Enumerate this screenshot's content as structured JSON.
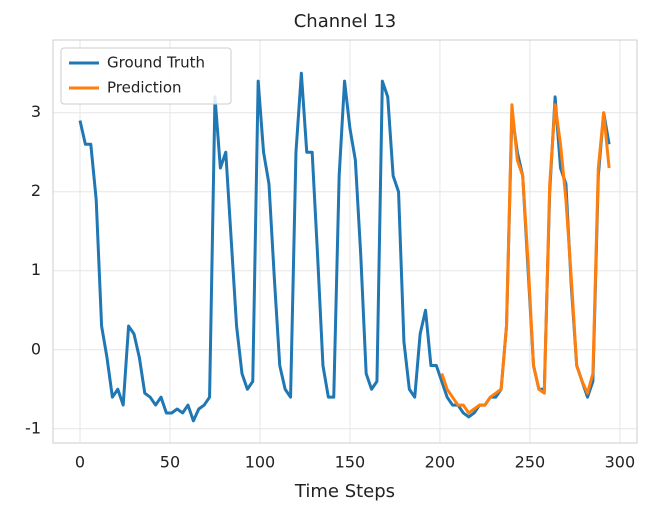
{
  "chart_data": {
    "type": "line",
    "title": "Channel 13",
    "xlabel": "Time Steps",
    "x": [
      0,
      3,
      6,
      9,
      12,
      15,
      18,
      21,
      24,
      27,
      30,
      33,
      36,
      39,
      42,
      45,
      48,
      51,
      54,
      57,
      60,
      63,
      66,
      69,
      72,
      75,
      78,
      81,
      84,
      87,
      90,
      93,
      96,
      99,
      102,
      105,
      108,
      111,
      114,
      117,
      120,
      123,
      126,
      129,
      132,
      135,
      138,
      141,
      144,
      147,
      150,
      153,
      156,
      159,
      162,
      165,
      168,
      171,
      174,
      177,
      180,
      183,
      186,
      189,
      192,
      195,
      198,
      201,
      204,
      207,
      210,
      213,
      216,
      219,
      222,
      225,
      228,
      231,
      234,
      237,
      240,
      243,
      246,
      249,
      252,
      255,
      258,
      261,
      264,
      267,
      270,
      273,
      276,
      279,
      282,
      285,
      288,
      291,
      294
    ],
    "series": [
      {
        "name": "Ground Truth",
        "color": "#1f77b4",
        "values": [
          2.9,
          2.6,
          2.6,
          1.9,
          0.3,
          -0.1,
          -0.6,
          -0.5,
          -0.7,
          0.3,
          0.2,
          -0.1,
          -0.55,
          -0.6,
          -0.7,
          -0.6,
          -0.8,
          -0.8,
          -0.75,
          -0.8,
          -0.7,
          -0.9,
          -0.75,
          -0.7,
          -0.6,
          3.2,
          2.3,
          2.5,
          1.4,
          0.3,
          -0.3,
          -0.5,
          -0.4,
          3.4,
          2.5,
          2.1,
          0.9,
          -0.2,
          -0.5,
          -0.6,
          2.5,
          3.5,
          2.5,
          2.5,
          1.2,
          -0.2,
          -0.6,
          -0.6,
          2.2,
          3.4,
          2.8,
          2.4,
          1.2,
          -0.3,
          -0.5,
          -0.4,
          3.4,
          3.2,
          2.2,
          2.0,
          0.1,
          -0.5,
          -0.6,
          0.2,
          0.5,
          -0.2,
          -0.2,
          -0.4,
          -0.6,
          -0.7,
          -0.7,
          -0.8,
          -0.85,
          -0.8,
          -0.7,
          -0.7,
          -0.6,
          -0.6,
          -0.5,
          0.3,
          3.0,
          2.5,
          2.2,
          1.0,
          -0.2,
          -0.5,
          -0.5,
          2.0,
          3.2,
          2.3,
          2.1,
          0.8,
          -0.2,
          -0.4,
          -0.6,
          -0.4,
          2.2,
          3.0,
          2.6
        ]
      },
      {
        "name": "Prediction",
        "color": "#ff7f0e",
        "values": [
          null,
          null,
          null,
          null,
          null,
          null,
          null,
          null,
          null,
          null,
          null,
          null,
          null,
          null,
          null,
          null,
          null,
          null,
          null,
          null,
          null,
          null,
          null,
          null,
          null,
          null,
          null,
          null,
          null,
          null,
          null,
          null,
          null,
          null,
          null,
          null,
          null,
          null,
          null,
          null,
          null,
          null,
          null,
          null,
          null,
          null,
          null,
          null,
          null,
          null,
          null,
          null,
          null,
          null,
          null,
          null,
          null,
          null,
          null,
          null,
          null,
          null,
          null,
          null,
          null,
          null,
          null,
          -0.3,
          -0.5,
          -0.6,
          -0.7,
          -0.7,
          -0.8,
          -0.75,
          -0.7,
          -0.7,
          -0.6,
          -0.55,
          -0.5,
          0.3,
          3.1,
          2.4,
          2.2,
          1.1,
          -0.2,
          -0.5,
          -0.55,
          2.1,
          3.1,
          2.6,
          1.9,
          0.9,
          -0.2,
          -0.4,
          -0.55,
          -0.3,
          2.3,
          3.0,
          2.3
        ]
      }
    ],
    "xlim": [
      -15,
      309.5
    ],
    "ylim": [
      -1.18,
      3.92
    ],
    "xticks": [
      0,
      50,
      100,
      150,
      200,
      250,
      300
    ],
    "yticks": [
      -1,
      0,
      1,
      2,
      3
    ],
    "grid": true,
    "legend": "upper left"
  }
}
